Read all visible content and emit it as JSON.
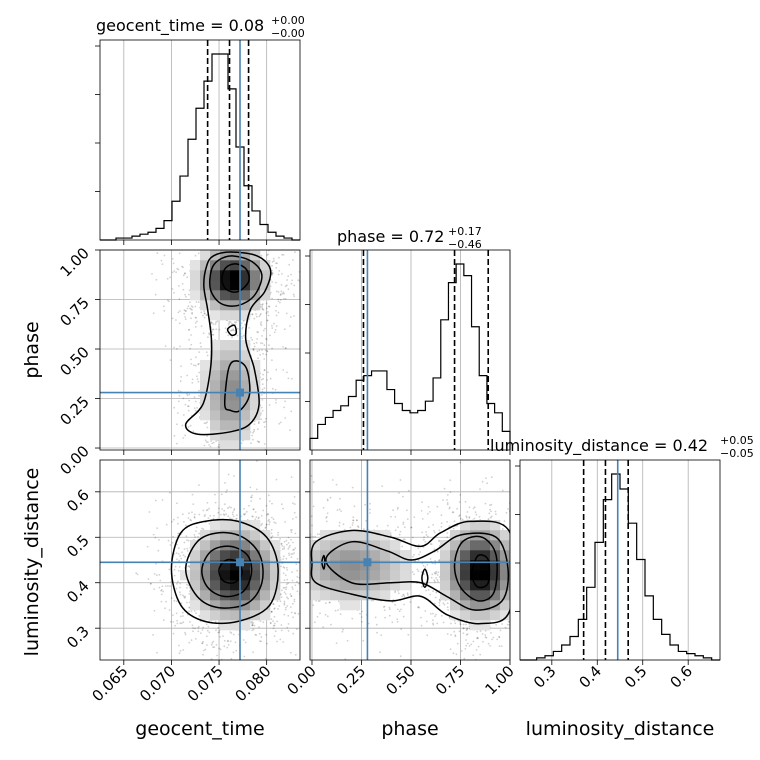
{
  "chart_data": {
    "type": "corner",
    "truth_color": "#4682b4",
    "parameters": [
      {
        "name": "geocent_time",
        "range": [
          0.0625,
          0.0835
        ],
        "truth": 0.0772,
        "ticks": [
          0.065,
          0.07,
          0.075,
          0.08
        ],
        "tick_labels": [
          "0.065",
          "0.070",
          "0.075",
          "0.080"
        ]
      },
      {
        "name": "phase",
        "range": [
          -0.01,
          1.0
        ],
        "truth": 0.28,
        "ticks": [
          0.0,
          0.25,
          0.5,
          0.75,
          1.0
        ],
        "tick_labels": [
          "0.00",
          "0.25",
          "0.50",
          "0.75",
          "1.00"
        ]
      },
      {
        "name": "luminosity_distance",
        "range": [
          0.23,
          0.67
        ],
        "truth": 0.445,
        "ticks": [
          0.3,
          0.4,
          0.5,
          0.6
        ],
        "tick_labels": [
          "0.3",
          "0.4",
          "0.5",
          "0.6"
        ]
      }
    ],
    "titles": [
      {
        "param": "geocent_time",
        "text": "geocent_time = 0.08",
        "sup": "+0.00",
        "sub": "−0.00"
      },
      {
        "param": "phase",
        "text": "phase = 0.72",
        "sup": "+0.17",
        "sub": "−0.46"
      },
      {
        "param": "luminosity_distance",
        "text": "luminosity_distance = 0.42",
        "sup": "+0.05",
        "sub": "−0.05"
      }
    ],
    "histograms": [
      {
        "param": "geocent_time",
        "range": [
          0.0625,
          0.0835
        ],
        "counts": [
          0,
          0,
          1,
          1,
          2,
          3,
          4,
          6,
          10,
          20,
          33,
          52,
          68,
          82,
          96,
          96,
          78,
          48,
          28,
          15,
          8,
          4,
          2,
          1,
          0
        ],
        "quantile_lines": [
          0.0738,
          0.0761,
          0.0781
        ]
      },
      {
        "param": "phase",
        "range": [
          -0.01,
          1.0
        ],
        "counts": [
          5,
          11,
          14,
          17,
          19,
          23,
          30,
          32,
          34,
          34,
          26,
          20,
          17,
          16,
          17,
          21,
          31,
          56,
          72,
          80,
          75,
          53,
          32,
          20,
          16,
          8
        ],
        "quantile_lines": [
          0.26,
          0.72,
          0.89
        ]
      },
      {
        "param": "luminosity_distance",
        "range": [
          0.23,
          0.67
        ],
        "counts": [
          0,
          0,
          1,
          2,
          4,
          7,
          11,
          19,
          34,
          55,
          75,
          87,
          80,
          64,
          47,
          30,
          19,
          12,
          7,
          4,
          3,
          2,
          1,
          0
        ],
        "quantile_lines": [
          0.37,
          0.418,
          0.468
        ]
      }
    ]
  }
}
